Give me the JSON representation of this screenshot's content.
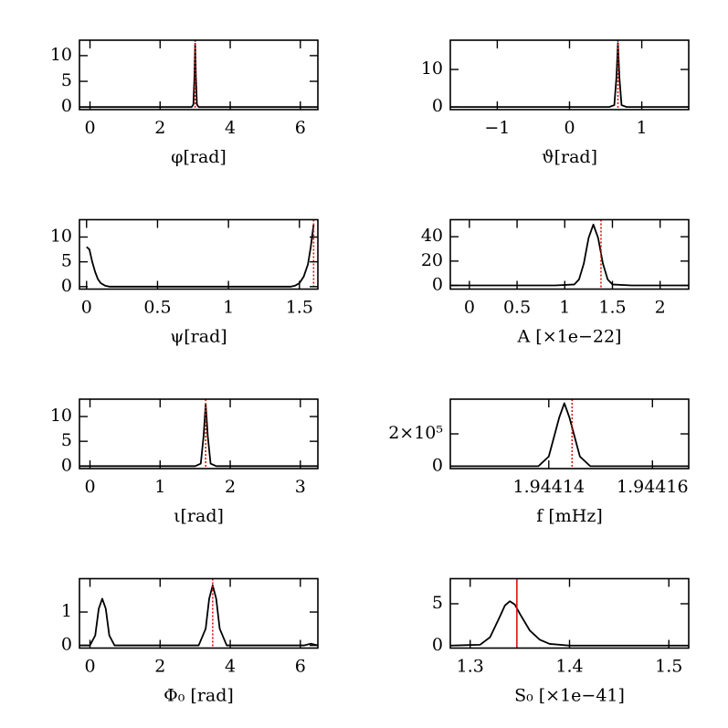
{
  "chart_data": [
    {
      "type": "line",
      "x_label": "φ[rad]",
      "color": "#000000",
      "x": [
        -0.3,
        2.9,
        2.95,
        2.98,
        3.0,
        3.02,
        3.05,
        3.1,
        6.5
      ],
      "values": [
        0,
        0,
        0.5,
        6,
        12.3,
        6,
        0.5,
        0,
        0
      ],
      "reference_x": 3.0,
      "reference_color": "#e01010",
      "reference_style": "dotted",
      "xlim": [
        -0.3,
        6.5
      ],
      "ylim": [
        -0.5,
        13
      ],
      "xticks": [
        0,
        2,
        4,
        6
      ],
      "yticks": [
        0,
        5,
        10
      ]
    },
    {
      "type": "line",
      "x_label": "ϑ[rad]",
      "color": "#000000",
      "x": [
        -1.65,
        0.55,
        0.62,
        0.65,
        0.67,
        0.69,
        0.72,
        0.79,
        1.65
      ],
      "values": [
        0,
        0,
        0.5,
        8,
        17,
        8,
        0.5,
        0,
        0
      ],
      "reference_x": 0.67,
      "reference_color": "#e01010",
      "reference_style": "dotted",
      "xlim": [
        -1.65,
        1.65
      ],
      "ylim": [
        -0.7,
        17.8
      ],
      "xticks": [
        {
          "value": -1,
          "label": "−1"
        },
        0,
        1
      ],
      "yticks": [
        0,
        10
      ]
    },
    {
      "type": "line",
      "x_label": "ψ[rad]",
      "color": "#000000",
      "x": [
        0,
        0.02,
        0.04,
        0.06,
        0.08,
        0.1,
        0.13,
        0.16,
        1.44,
        1.47,
        1.5,
        1.53,
        1.56,
        1.58,
        1.6
      ],
      "values": [
        8,
        7.5,
        5,
        3,
        1.5,
        0.7,
        0.2,
        0,
        0,
        0.2,
        0.7,
        2,
        4.5,
        8,
        12.5
      ],
      "reference_x": 1.6,
      "reference_color": "#e01010",
      "reference_style": "dotted",
      "xlim": [
        -0.05,
        1.63
      ],
      "ylim": [
        -0.5,
        13.5
      ],
      "xticks": [
        0,
        0.5,
        1,
        1.5
      ],
      "yticks": [
        0,
        5,
        10
      ]
    },
    {
      "type": "line",
      "x_label": "A [×1e−22]",
      "color": "#000000",
      "x": [
        -0.2,
        0.9,
        1.1,
        1.15,
        1.2,
        1.25,
        1.3,
        1.35,
        1.4,
        1.45,
        1.5,
        1.7,
        2.3
      ],
      "values": [
        0,
        0,
        0.8,
        5,
        18,
        39,
        50,
        39,
        18,
        5,
        0.8,
        0,
        0
      ],
      "reference_x": 1.38,
      "reference_color": "#e01010",
      "reference_style": "dotted",
      "xlim": [
        -0.2,
        2.3
      ],
      "ylim": [
        -3,
        54
      ],
      "xticks": [
        0,
        0.5,
        1,
        1.5,
        2
      ],
      "yticks": [
        0,
        20,
        40
      ]
    },
    {
      "type": "line",
      "x_label": "ι[rad]",
      "color": "#000000",
      "x": [
        -0.15,
        1.5,
        1.58,
        1.62,
        1.65,
        1.68,
        1.72,
        1.8,
        3.25
      ],
      "values": [
        0,
        0,
        0.5,
        6,
        12.5,
        6,
        0.5,
        0,
        0
      ],
      "reference_x": 1.65,
      "reference_color": "#e01010",
      "reference_style": "dotted",
      "xlim": [
        -0.15,
        3.25
      ],
      "ylim": [
        -0.5,
        13.5
      ],
      "xticks": [
        0,
        1,
        2,
        3
      ],
      "yticks": [
        0,
        5,
        10
      ]
    },
    {
      "type": "line",
      "x_label": "f [mHz]",
      "color": "#000000",
      "x": [
        1.944121,
        1.944138,
        1.94414,
        1.944142,
        1.944143,
        1.944144,
        1.944146,
        1.944148,
        1.944167
      ],
      "values": [
        0,
        0,
        60000,
        300000,
        390000,
        300000,
        60000,
        0,
        0
      ],
      "reference_x": 1.9441445,
      "reference_color": "#e01010",
      "reference_style": "dotted",
      "xlim": [
        1.944121,
        1.944167
      ],
      "ylim": [
        -15000,
        415000
      ],
      "xticks": [
        1.94414,
        1.94416
      ],
      "yticks": [
        0,
        {
          "value": 200000,
          "label": "2×10⁵"
        }
      ]
    },
    {
      "type": "line",
      "x_label": "Φ₀ [rad]",
      "color": "#000000",
      "x": [
        -0.3,
        0,
        0.15,
        0.25,
        0.35,
        0.45,
        0.55,
        0.7,
        3.1,
        3.3,
        3.4,
        3.5,
        3.6,
        3.7,
        3.9,
        6.1,
        6.3,
        6.5
      ],
      "values": [
        0,
        0,
        0.3,
        1.1,
        1.4,
        1.1,
        0.3,
        0,
        0,
        0.5,
        1.4,
        1.8,
        1.4,
        0.5,
        0,
        0,
        0.05,
        0
      ],
      "reference_x": 3.5,
      "reference_color": "#e01010",
      "reference_style": "dotted",
      "xlim": [
        -0.3,
        6.5
      ],
      "ylim": [
        -0.08,
        2.0
      ],
      "xticks": [
        0,
        2,
        4,
        6
      ],
      "yticks": [
        0,
        1
      ]
    },
    {
      "type": "line",
      "x_label": "S₀ [×1e−41]",
      "color": "#000000",
      "x": [
        1.28,
        1.31,
        1.32,
        1.33,
        1.335,
        1.34,
        1.345,
        1.35,
        1.36,
        1.37,
        1.38,
        1.4,
        1.52
      ],
      "values": [
        0,
        0.1,
        1,
        3.5,
        4.8,
        5.3,
        4.9,
        3.8,
        1.8,
        0.7,
        0.2,
        0,
        0
      ],
      "reference_x": 1.347,
      "reference_color": "#e01010",
      "reference_style": "solid",
      "xlim": [
        1.28,
        1.52
      ],
      "ylim": [
        -0.3,
        8
      ],
      "xticks": [
        1.3,
        1.4,
        1.5
      ],
      "yticks": [
        0,
        5
      ]
    }
  ]
}
